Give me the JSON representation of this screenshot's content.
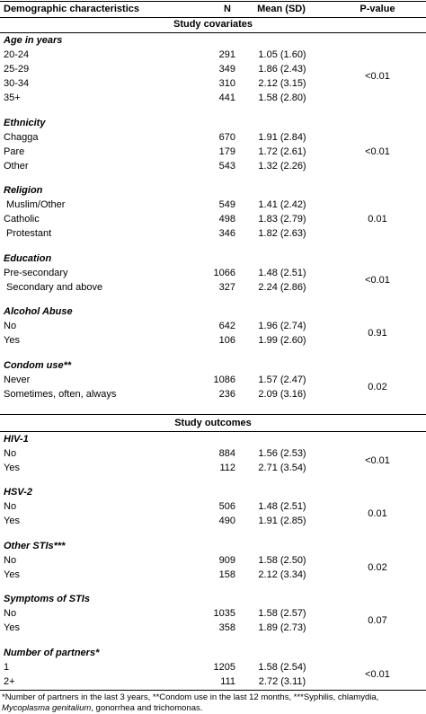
{
  "header": [
    "Demographic characteristics",
    "N",
    "Mean (SD)",
    "P-value"
  ],
  "sections": [
    {
      "title": "Study covariates",
      "groups": [
        {
          "title": "Age in years",
          "p": "<0.01",
          "rows": [
            [
              "20-24",
              291,
              "1.05 (1.60)"
            ],
            [
              "25-29",
              349,
              "1.86 (2.43)"
            ],
            [
              "30-34",
              310,
              "2.12 (3.15)"
            ],
            [
              "35+",
              441,
              "1.58 (2.80)"
            ]
          ]
        },
        {
          "title": "Ethnicity",
          "p": "<0.01",
          "rows": [
            [
              "Chagga",
              670,
              "1.91 (2.84)"
            ],
            [
              "Pare",
              179,
              "1.72 (2.61)"
            ],
            [
              "Other",
              543,
              "1.32 (2.26)"
            ]
          ]
        },
        {
          "title": "Religion",
          "p": "0.01",
          "rows": [
            [
              " Muslim/Other",
              549,
              "1.41 (2.42)"
            ],
            [
              "Catholic",
              498,
              "1.83 (2.79)"
            ],
            [
              " Protestant",
              346,
              "1.82 (2.63)"
            ]
          ]
        },
        {
          "title": "Education",
          "p": "<0.01",
          "rows": [
            [
              "Pre-secondary",
              1066,
              "1.48 (2.51)"
            ],
            [
              " Secondary and above",
              327,
              "2.24 (2.86)"
            ]
          ]
        },
        {
          "title": "Alcohol Abuse",
          "p": "0.91",
          "rows": [
            [
              "No",
              642,
              "1.96 (2.74)"
            ],
            [
              "Yes",
              106,
              "1.99 (2.60)"
            ]
          ]
        },
        {
          "title": "Condom use**",
          "p": "0.02",
          "rows": [
            [
              "Never",
              1086,
              "1.57 (2.47)"
            ],
            [
              "Sometimes, often, always",
              236,
              "2.09 (3.16)"
            ]
          ]
        }
      ]
    },
    {
      "title": "Study outcomes",
      "groups": [
        {
          "title": "HIV-1",
          "p": "<0.01",
          "rows": [
            [
              "No",
              884,
              "1.56 (2.53)"
            ],
            [
              "Yes",
              112,
              "2.71 (3.54)"
            ]
          ]
        },
        {
          "title": "HSV-2",
          "p": "0.01",
          "rows": [
            [
              "No",
              506,
              "1.48 (2.51)"
            ],
            [
              "Yes",
              490,
              "1.91 (2.85)"
            ]
          ]
        },
        {
          "title": "Other STIs***",
          "p": "0.02",
          "rows": [
            [
              "No",
              909,
              "1.58 (2.50)"
            ],
            [
              "Yes",
              158,
              "2.12 (3.34)"
            ]
          ]
        },
        {
          "title": "Symptoms of STIs",
          "p": "0.07",
          "rows": [
            [
              "No",
              1035,
              "1.58 (2.57)"
            ],
            [
              "Yes",
              358,
              "1.89 (2.73)"
            ]
          ]
        },
        {
          "title": "Number of partners*",
          "p": "<0.01",
          "rows": [
            [
              "1",
              1205,
              "1.58 (2.54)"
            ],
            [
              "2+",
              111,
              "2.72 (3.11)"
            ]
          ]
        }
      ]
    }
  ],
  "footnote": [
    "*Number of partners in the last 3 years, **Condom use in the last 12 months, ***Syphilis, chlamydia,",
    "Mycoplasma genitalium",
    ", gonorrhea and trichomonas."
  ]
}
